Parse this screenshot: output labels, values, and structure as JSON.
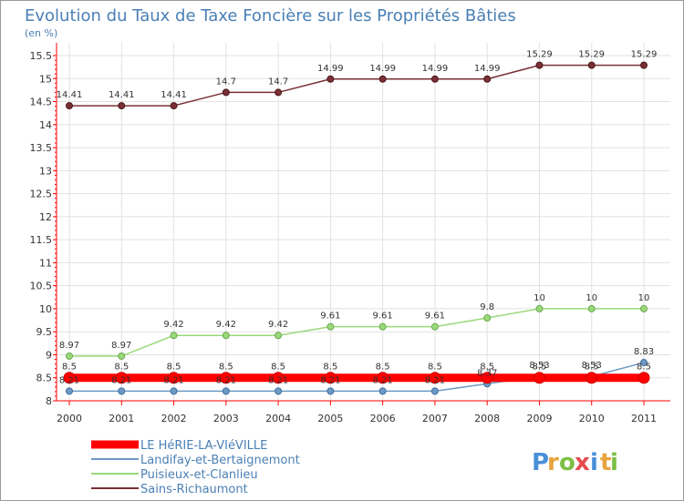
{
  "chart_data": {
    "type": "line",
    "title": "Evolution du Taux de Taxe Foncière sur les Propriétés Bâties",
    "subtitle": "(en %)",
    "categories": [
      "2000",
      "2001",
      "2002",
      "2003",
      "2004",
      "2005",
      "2006",
      "2007",
      "2008",
      "2009",
      "2010",
      "2011"
    ],
    "ylim": [
      8,
      15.5
    ],
    "yticks": [
      "8",
      "8.5",
      "9",
      "9.5",
      "10",
      "10.5",
      "11",
      "11.5",
      "12",
      "12.5",
      "13",
      "13.5",
      "14",
      "14.5",
      "15",
      "15.5"
    ],
    "series": [
      {
        "name": "LE HéRIE-LA-VIéVILLE",
        "color": "#ff0000",
        "values": [
          8.5,
          8.5,
          8.5,
          8.5,
          8.5,
          8.5,
          8.5,
          8.5,
          8.5,
          8.5,
          8.5,
          8.5
        ],
        "labels": [
          "8.5",
          "8.5",
          "8.5",
          "8.5",
          "8.5",
          "8.5",
          "8.5",
          "8.5",
          "8.5",
          "8.5",
          "8.5",
          "8.5"
        ]
      },
      {
        "name": "Landifay-et-Bertaignemont",
        "color": "#6d9ac4",
        "values": [
          8.21,
          8.21,
          8.21,
          8.21,
          8.21,
          8.21,
          8.21,
          8.21,
          8.37,
          8.53,
          8.53,
          8.83
        ],
        "labels": [
          "8.21",
          "8.21",
          "8.21",
          "8.21",
          "8.21",
          "8.21",
          "8.21",
          "8.21",
          "8.37",
          "8.53",
          "8.53",
          "8.83"
        ]
      },
      {
        "name": "Puisieux-et-Clanlieu",
        "color": "#99d97a",
        "values": [
          8.97,
          8.97,
          9.42,
          9.42,
          9.42,
          9.61,
          9.61,
          9.61,
          9.8,
          10,
          10,
          10
        ],
        "labels": [
          "8.97",
          "8.97",
          "9.42",
          "9.42",
          "9.42",
          "9.61",
          "9.61",
          "9.61",
          "9.8",
          "10",
          "10",
          "10"
        ]
      },
      {
        "name": "Sains-Richaumont",
        "color": "#7a3035",
        "values": [
          14.41,
          14.41,
          14.41,
          14.7,
          14.7,
          14.99,
          14.99,
          14.99,
          14.99,
          15.29,
          15.29,
          15.29
        ],
        "labels": [
          "14.41",
          "14.41",
          "14.41",
          "14.7",
          "14.7",
          "14.99",
          "14.99",
          "14.99",
          "14.99",
          "15.29",
          "15.29",
          "15.29"
        ]
      }
    ]
  },
  "logo": {
    "letters": [
      "P",
      "r",
      "o",
      "x",
      "i",
      "t",
      "i"
    ],
    "colors": [
      "#4a90d9",
      "#e8a33d",
      "#7cc043",
      "#e54b4b",
      "#4a90d9",
      "#e8a33d",
      "#7cc043"
    ]
  }
}
